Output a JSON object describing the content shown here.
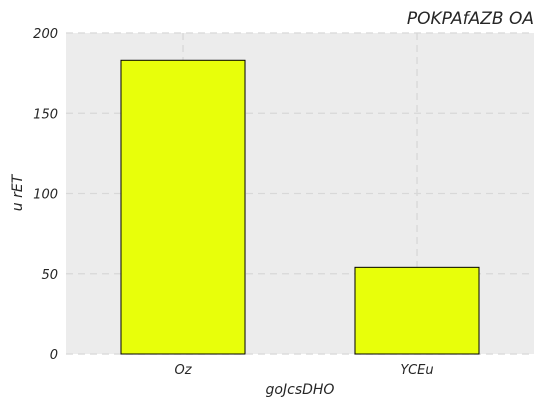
{
  "chart_data": {
    "type": "bar",
    "title": "POKPAfAZB OA",
    "xlabel": "goJcsDHO",
    "ylabel": "u rET",
    "categories": [
      "Oz",
      "YCEu"
    ],
    "values": [
      183,
      54
    ],
    "ylim": [
      0,
      200
    ],
    "yticks": [
      0,
      50,
      100,
      150,
      200
    ],
    "grid": true,
    "colors": {
      "bar_fill": "#e8ff0a",
      "bar_edge": "#000000",
      "plot_background": "#ececec",
      "grid": "#d8d8d8"
    }
  }
}
